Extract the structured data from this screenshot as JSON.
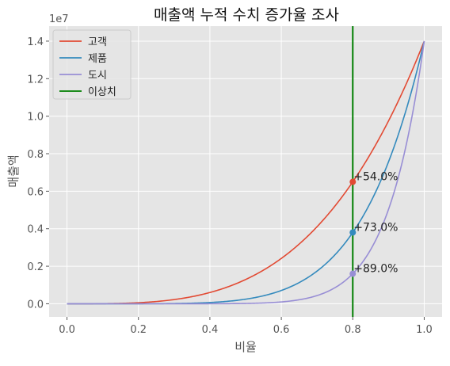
{
  "chart_data": {
    "type": "line",
    "title": "매출액 누적 수치 증가율 조사",
    "xlabel": "비율",
    "ylabel": "매출액",
    "scale_label": "1e7",
    "xlim": [
      -0.05,
      1.05
    ],
    "ylim": [
      -0.07,
      1.48
    ],
    "x_ticks": [
      "0.0",
      "0.2",
      "0.4",
      "0.6",
      "0.8",
      "1.0"
    ],
    "y_ticks": [
      "0.0",
      "0.2",
      "0.4",
      "0.6",
      "0.8",
      "1.0",
      "1.2",
      "1.4"
    ],
    "grid": true,
    "legend_position": "upper-left",
    "series": [
      {
        "name": "고객",
        "color": "#E24A33",
        "end_value": 1.4,
        "value_at_outlier": 0.65,
        "annotation": "+54.0%"
      },
      {
        "name": "제품",
        "color": "#348ABD",
        "end_value": 1.4,
        "value_at_outlier": 0.38,
        "annotation": "+73.0%"
      },
      {
        "name": "도시",
        "color": "#988ED5",
        "end_value": 1.4,
        "value_at_outlier": 0.16,
        "annotation": "+89.0%"
      }
    ],
    "outlier": {
      "name": "이상치",
      "x": 0.8,
      "color": "#007F00"
    }
  }
}
